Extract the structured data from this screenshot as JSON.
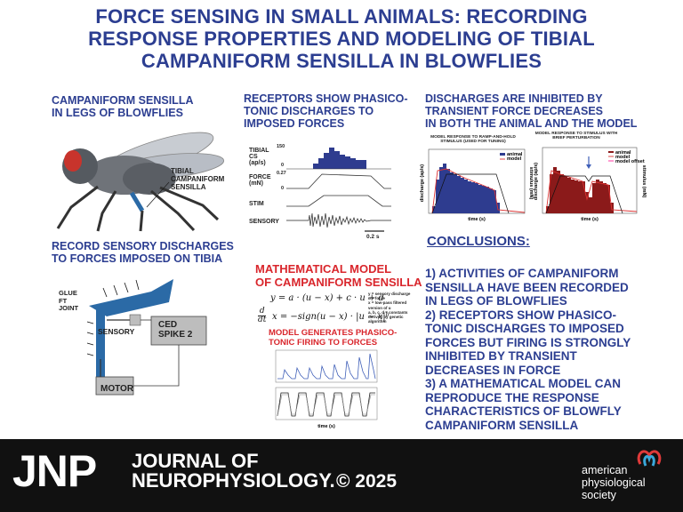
{
  "title": {
    "line1": "FORCE SENSING IN SMALL ANIMALS: RECORDING",
    "line2": "RESPONSE PROPERTIES AND MODELING OF TIBIAL",
    "line3": "CAMPANIFORM SENSILLA IN BLOWFLIES"
  },
  "panel1": {
    "heading_l1": "CAMPANIFORM SENSILLA",
    "heading_l2": "IN LEGS OF BLOWFLIES",
    "label_l1": "TIBIAL",
    "label_l2": "CAMPANIFORM",
    "label_l3": "SENSILLA"
  },
  "panel2": {
    "heading_l1": "RECEPTORS SHOW PHASICO-",
    "heading_l2": "TONIC DISCHARGES TO",
    "heading_l3": "IMPOSED FORCES",
    "trace_cs_l1": "TIBIAL",
    "trace_cs_l2": "CS",
    "trace_cs_l3": "(ap/s)",
    "cs_tick_top": "150",
    "cs_tick_bottom": "0",
    "trace_force_l1": "FORCE",
    "trace_force_l2": "(mN)",
    "force_tick_top": "0.27",
    "force_tick_bottom": "0",
    "trace_stim": "STIM",
    "trace_sensory": "SENSORY",
    "scalebar": "0.2 s"
  },
  "panel3": {
    "heading_l1": "DISCHARGES ARE INHIBITED BY",
    "heading_l2": "TRANSIENT FORCE DECREASES",
    "heading_l3": "IN BOTH THE ANIMAL AND THE MODEL",
    "chart_a_title_l1": "MODEL RESPONSE TO RAMP-AND-HOLD",
    "chart_a_title_l2": "STIMULUS (USED FOR TUNING)",
    "chart_a_legend_animal": "animal",
    "chart_a_legend_model": "model",
    "chart_b_title_l1": "MODEL RESPONSE TO STIMULUS WITH",
    "chart_b_title_l2": "BRIEF PERTURBATION",
    "chart_b_legend_animal": "animal",
    "chart_b_legend_model": "model",
    "chart_b_legend_offset": "model offset",
    "ylabel_left": "discharge (ap/s)",
    "ylabel_right": "stimulus (mN)",
    "xlabel": "time (s)"
  },
  "panel4": {
    "heading_l1": "RECORD SENSORY DISCHARGES",
    "heading_l2": "TO FORCES IMPOSED ON TIBIA",
    "glue_l1": "GLUE",
    "glue_l2": "FT",
    "glue_l3": "JOINT",
    "sensory": "SENSORY",
    "ced_l1": "CED",
    "ced_l2": "SPIKE 2",
    "motor": "MOTOR"
  },
  "panel5": {
    "heading_l1": "MATHEMATICAL MODEL",
    "heading_l2": "OF CAMPANIFORM SENSILLA",
    "eq1": "y = a · (u − x) + c · u + d",
    "eq2_prefix": "d",
    "eq2_denom": "dt",
    "eq2": "x = −sign(u − x) · |u − x|ᵇ",
    "legend_l1": "y = sensory discharge",
    "legend_l2": "u = force",
    "legend_l3": "x = low-pass filtered",
    "legend_l4": "version of u",
    "legend_l5": "a, b, c, d = constants",
    "legend_l6": "derived by genetic",
    "legend_l7": "algorithm",
    "sub_l1": "MODEL GENERATES PHASICO-",
    "sub_l2": "TONIC FIRING TO FORCES",
    "xlabel": "time (s)"
  },
  "conclusions": {
    "title": "CONCLUSIONS:",
    "p1_l1": "1) ACTIVITIES OF CAMPANIFORM",
    "p1_l2": "SENSILLA HAVE BEEN RECORDED",
    "p1_l3": "IN LEGS OF BLOWFLIES",
    "p2_l1": "2) RECEPTORS SHOW PHASICO-",
    "p2_l2": "TONIC DISCHARGES TO IMPOSED",
    "p2_l3": "FORCES BUT FIRING IS STRONGLY",
    "p2_l4": "INHIBITED BY TRANSIENT",
    "p2_l5": "DECREASES IN FORCE",
    "p3_l1": "3) A MATHEMATICAL MODEL CAN",
    "p3_l2": "REPRODUCE THE RESPONSE",
    "p3_l3": "CHARACTERISTICS OF BLOWFLY",
    "p3_l4": "CAMPANIFORM SENSILLA"
  },
  "footer": {
    "jnp": "JNP",
    "journal_l1": "JOURNAL OF",
    "journal_l2": "NEUROPHYSIOLOGY.",
    "copyright": "© 2025",
    "aps_l1": "american",
    "aps_l2": "physiological",
    "aps_l3": "society"
  },
  "colors": {
    "title_blue": "#2c3e91",
    "heading_red": "#d9262c",
    "histogram_blue": "#2e3c8f",
    "animal_red": "#8b1a1a",
    "leg_blue": "#2b6aa6",
    "footer_bg": "#111111",
    "model_blue": "#3f5fb8"
  }
}
